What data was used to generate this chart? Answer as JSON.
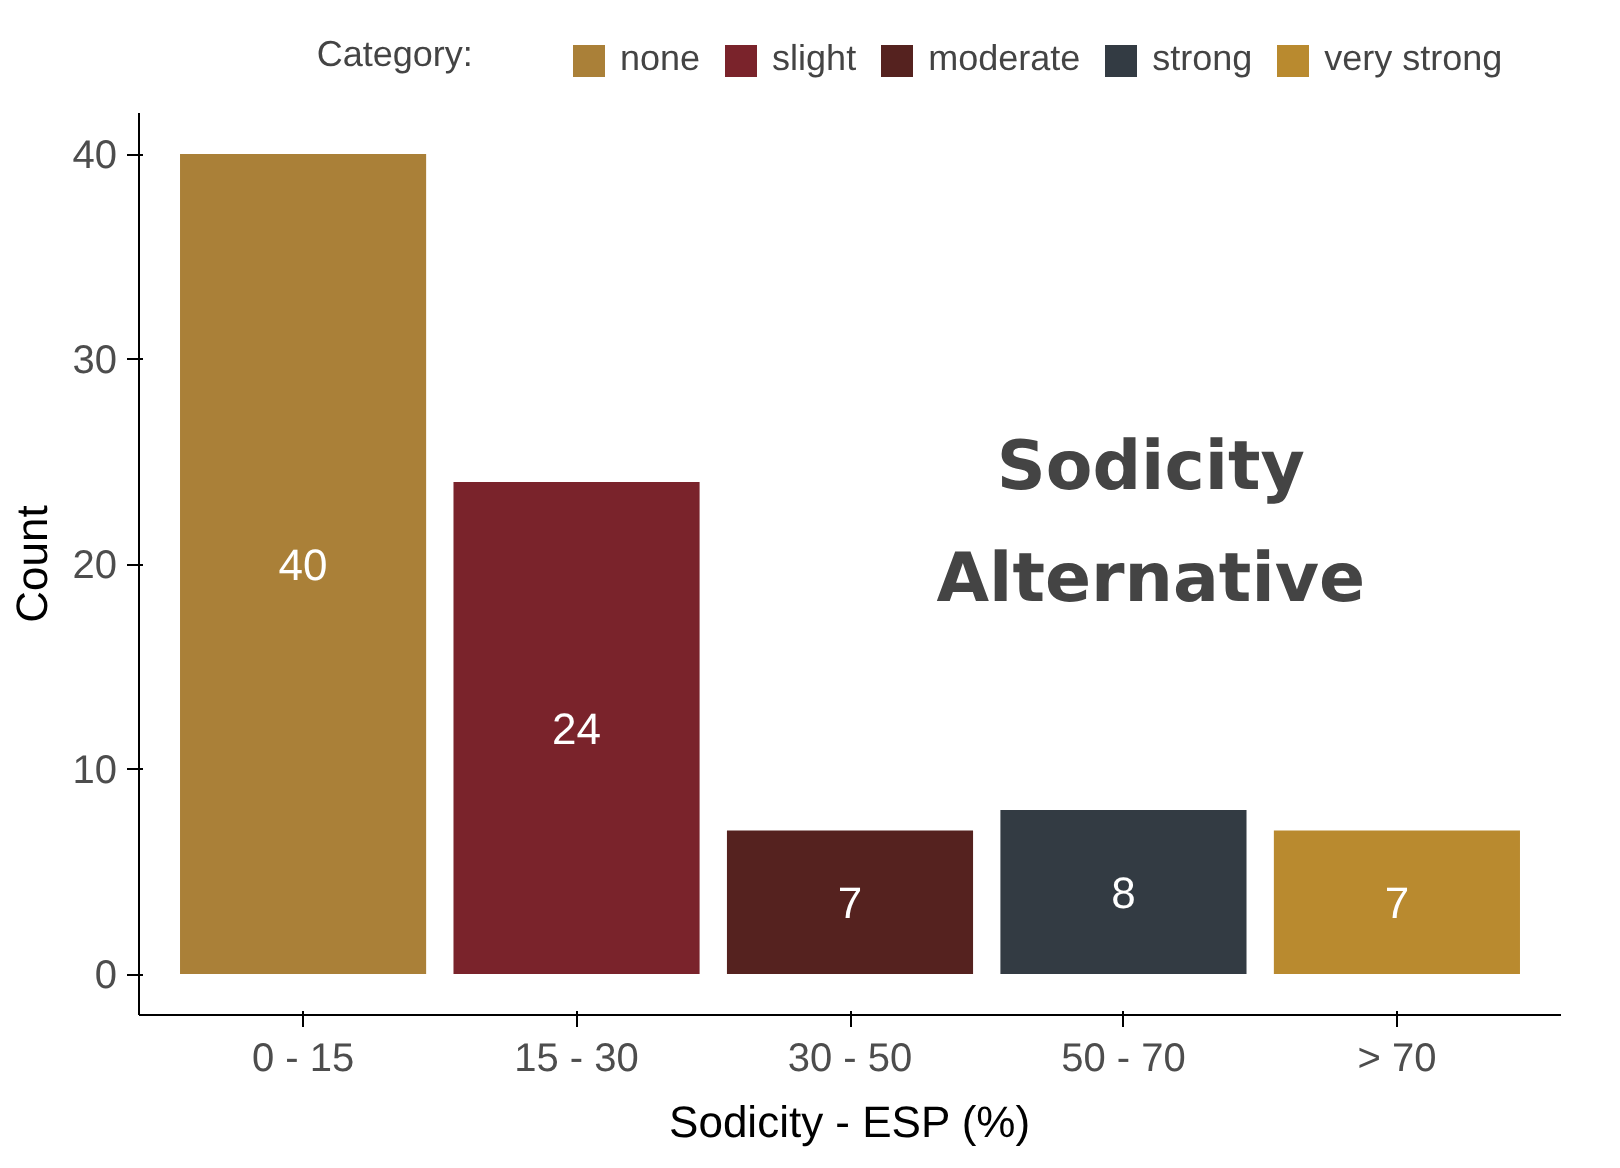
{
  "chart_data": {
    "type": "bar",
    "categories": [
      "0 - 15",
      "15 - 30",
      "30 - 50",
      "50 - 70",
      "> 70"
    ],
    "series": [
      {
        "name": "none",
        "color": "#aa8038",
        "values": [
          40,
          null,
          null,
          null,
          null
        ]
      },
      {
        "name": "slight",
        "color": "#7a232b",
        "values": [
          null,
          24,
          null,
          null,
          null
        ]
      },
      {
        "name": "moderate",
        "color": "#55221f",
        "values": [
          null,
          null,
          7,
          null,
          null
        ]
      },
      {
        "name": "strong",
        "color": "#333b43",
        "values": [
          null,
          null,
          null,
          8,
          null
        ]
      },
      {
        "name": "very strong",
        "color": "#b98a2f",
        "values": [
          null,
          null,
          null,
          null,
          7
        ]
      }
    ],
    "legend_title": "Category:",
    "legend": "top",
    "xlabel": "Sodicity - ESP (%)",
    "ylabel": "Count",
    "ylim": [
      -2,
      42
    ],
    "yticks": [
      0,
      10,
      20,
      30,
      40
    ],
    "grid": false,
    "data_labels": true,
    "annotations": [
      "Sodicity\nAlternative"
    ]
  }
}
